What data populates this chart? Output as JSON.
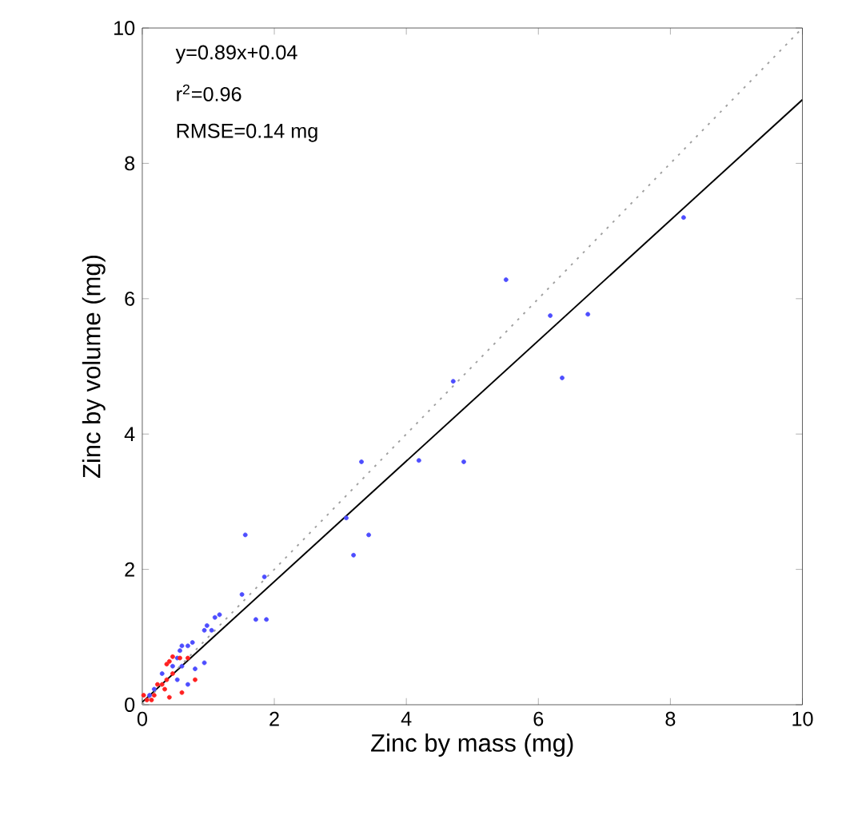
{
  "chart_data": {
    "type": "scatter",
    "xlabel": "Zinc by mass (mg)",
    "ylabel": "Zinc by volume (mg)",
    "xlim": [
      0,
      10
    ],
    "ylim": [
      0,
      10
    ],
    "xticks": [
      0,
      2,
      4,
      6,
      8,
      10
    ],
    "yticks": [
      0,
      2,
      4,
      6,
      8,
      10
    ],
    "grid": false,
    "marker": "circle",
    "annotations": [
      "y=0.89x+0.04",
      "r$^{2}$=0.96",
      "RMSE=0.14 mg"
    ],
    "series": [
      {
        "type": "scatter",
        "color": "#4d4dff",
        "x": [
          8.2,
          5.51,
          6.18,
          6.75,
          6.36,
          4.71,
          3.32,
          4.19,
          4.87,
          3.09,
          3.43,
          3.2,
          1.56,
          1.85,
          1.72,
          1.88,
          1.51,
          1.17,
          1.1,
          0.98,
          0.94,
          1.05,
          0.76,
          0.69,
          0.6,
          0.94,
          0.57,
          0.53,
          0.46,
          0.6,
          0.69,
          0.3,
          0.25,
          0.18,
          0.11,
          0.53,
          0.8
        ],
        "values": [
          7.2,
          6.28,
          5.75,
          5.77,
          4.83,
          4.78,
          3.59,
          3.61,
          3.59,
          2.76,
          2.51,
          2.21,
          2.51,
          1.89,
          1.26,
          1.26,
          1.63,
          1.33,
          1.29,
          1.17,
          1.1,
          1.1,
          0.92,
          0.87,
          0.87,
          0.62,
          0.8,
          0.69,
          0.57,
          0.57,
          0.3,
          0.46,
          null,
          0.23,
          0.14,
          0.37,
          0.53
        ]
      },
      {
        "type": "scatter",
        "color": "#ff2020",
        "x": [
          0.37,
          0.41,
          0.46,
          0.57,
          0.46,
          0.37,
          0.3,
          0.23,
          0.18,
          0.02,
          0.07,
          0.8,
          0.6,
          0.41,
          0.14,
          0.69,
          0.34
        ],
        "values": [
          0.6,
          0.64,
          0.71,
          0.69,
          0.46,
          0.37,
          0.3,
          0.3,
          0.14,
          0.14,
          0.07,
          0.37,
          0.18,
          0.11,
          0.07,
          0.69,
          0.23
        ]
      },
      {
        "type": "line",
        "color": "#000000",
        "marker": "none",
        "line_style": "solid",
        "x": [
          0,
          10
        ],
        "values": [
          0.04,
          8.94
        ]
      },
      {
        "type": "line",
        "color": "#a0a0a0",
        "marker": "none",
        "line_style": "dotted",
        "x": [
          0,
          10
        ],
        "values": [
          0,
          10
        ]
      }
    ]
  }
}
